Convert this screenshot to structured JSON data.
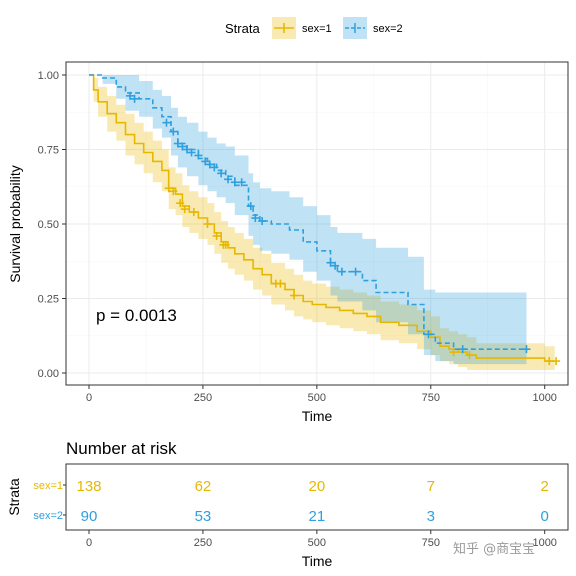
{
  "chart_data": [
    {
      "type": "line",
      "subtype": "kaplan-meier survival curve with confidence bands",
      "xlabel": "Time",
      "ylabel": "Survival probability",
      "xlim": [
        0,
        1020
      ],
      "ylim": [
        0,
        1
      ],
      "x_ticks": [
        0,
        250,
        500,
        750,
        1000
      ],
      "y_ticks": [
        "0.00",
        "0.25",
        "0.50",
        "0.75",
        "1.00"
      ],
      "grid": true,
      "legend": {
        "title": "Strata",
        "position": "top"
      },
      "annotation": "p = 0.0013",
      "series": [
        {
          "name": "sex=1",
          "color": "#E7B800",
          "line_style": "solid",
          "steps": [
            [
              0,
              1.0
            ],
            [
              10,
              0.95
            ],
            [
              20,
              0.91
            ],
            [
              40,
              0.87
            ],
            [
              60,
              0.84
            ],
            [
              80,
              0.8
            ],
            [
              100,
              0.77
            ],
            [
              120,
              0.74
            ],
            [
              140,
              0.71
            ],
            [
              160,
              0.68
            ],
            [
              175,
              0.62
            ],
            [
              190,
              0.6
            ],
            [
              205,
              0.56
            ],
            [
              220,
              0.54
            ],
            [
              240,
              0.52
            ],
            [
              260,
              0.5
            ],
            [
              275,
              0.47
            ],
            [
              290,
              0.44
            ],
            [
              305,
              0.42
            ],
            [
              320,
              0.4
            ],
            [
              340,
              0.38
            ],
            [
              360,
              0.35
            ],
            [
              380,
              0.33
            ],
            [
              400,
              0.3
            ],
            [
              430,
              0.28
            ],
            [
              450,
              0.26
            ],
            [
              470,
              0.24
            ],
            [
              490,
              0.23
            ],
            [
              520,
              0.22
            ],
            [
              550,
              0.21
            ],
            [
              580,
              0.2
            ],
            [
              610,
              0.19
            ],
            [
              640,
              0.17
            ],
            [
              680,
              0.16
            ],
            [
              720,
              0.14
            ],
            [
              750,
              0.12
            ],
            [
              770,
              0.09
            ],
            [
              790,
              0.08
            ],
            [
              810,
              0.07
            ],
            [
              830,
              0.06
            ],
            [
              850,
              0.05
            ],
            [
              900,
              0.05
            ],
            [
              1000,
              0.04
            ],
            [
              1022,
              0.04
            ]
          ],
          "ci_upper": [
            [
              0,
              1.0
            ],
            [
              10,
              0.99
            ],
            [
              20,
              0.96
            ],
            [
              40,
              0.93
            ],
            [
              60,
              0.9
            ],
            [
              80,
              0.87
            ],
            [
              100,
              0.84
            ],
            [
              120,
              0.81
            ],
            [
              140,
              0.78
            ],
            [
              160,
              0.75
            ],
            [
              175,
              0.69
            ],
            [
              190,
              0.67
            ],
            [
              205,
              0.63
            ],
            [
              220,
              0.61
            ],
            [
              240,
              0.59
            ],
            [
              260,
              0.57
            ],
            [
              275,
              0.54
            ],
            [
              290,
              0.51
            ],
            [
              305,
              0.49
            ],
            [
              320,
              0.47
            ],
            [
              340,
              0.45
            ],
            [
              360,
              0.42
            ],
            [
              380,
              0.4
            ],
            [
              400,
              0.37
            ],
            [
              430,
              0.35
            ],
            [
              450,
              0.33
            ],
            [
              470,
              0.31
            ],
            [
              490,
              0.3
            ],
            [
              520,
              0.29
            ],
            [
              550,
              0.28
            ],
            [
              580,
              0.27
            ],
            [
              610,
              0.26
            ],
            [
              640,
              0.24
            ],
            [
              680,
              0.23
            ],
            [
              720,
              0.21
            ],
            [
              750,
              0.19
            ],
            [
              770,
              0.15
            ],
            [
              790,
              0.14
            ],
            [
              810,
              0.13
            ],
            [
              830,
              0.12
            ],
            [
              850,
              0.1
            ],
            [
              900,
              0.1
            ],
            [
              1000,
              0.09
            ],
            [
              1022,
              0.09
            ]
          ],
          "ci_lower": [
            [
              0,
              1.0
            ],
            [
              10,
              0.91
            ],
            [
              20,
              0.86
            ],
            [
              40,
              0.81
            ],
            [
              60,
              0.78
            ],
            [
              80,
              0.73
            ],
            [
              100,
              0.7
            ],
            [
              120,
              0.67
            ],
            [
              140,
              0.64
            ],
            [
              160,
              0.61
            ],
            [
              175,
              0.55
            ],
            [
              190,
              0.53
            ],
            [
              205,
              0.49
            ],
            [
              220,
              0.47
            ],
            [
              240,
              0.45
            ],
            [
              260,
              0.43
            ],
            [
              275,
              0.4
            ],
            [
              290,
              0.37
            ],
            [
              305,
              0.35
            ],
            [
              320,
              0.33
            ],
            [
              340,
              0.31
            ],
            [
              360,
              0.28
            ],
            [
              380,
              0.26
            ],
            [
              400,
              0.23
            ],
            [
              430,
              0.21
            ],
            [
              450,
              0.19
            ],
            [
              470,
              0.18
            ],
            [
              490,
              0.17
            ],
            [
              520,
              0.16
            ],
            [
              550,
              0.15
            ],
            [
              580,
              0.14
            ],
            [
              610,
              0.13
            ],
            [
              640,
              0.11
            ],
            [
              680,
              0.1
            ],
            [
              720,
              0.08
            ],
            [
              750,
              0.06
            ],
            [
              770,
              0.04
            ],
            [
              790,
              0.03
            ],
            [
              810,
              0.02
            ],
            [
              830,
              0.01
            ],
            [
              850,
              0.01
            ],
            [
              900,
              0.01
            ],
            [
              1000,
              0.01
            ],
            [
              1022,
              0.01
            ]
          ],
          "censored": [
            [
              175,
              0.62
            ],
            [
              185,
              0.61
            ],
            [
              200,
              0.57
            ],
            [
              210,
              0.55
            ],
            [
              230,
              0.54
            ],
            [
              260,
              0.5
            ],
            [
              280,
              0.46
            ],
            [
              295,
              0.43
            ],
            [
              300,
              0.43
            ],
            [
              410,
              0.3
            ],
            [
              420,
              0.3
            ],
            [
              450,
              0.26
            ],
            [
              800,
              0.07
            ],
            [
              835,
              0.06
            ],
            [
              1010,
              0.04
            ],
            [
              1025,
              0.04
            ]
          ]
        },
        {
          "name": "sex=2",
          "color": "#2E9FDF",
          "line_style": "dashed",
          "steps": [
            [
              0,
              1.0
            ],
            [
              30,
              0.99
            ],
            [
              60,
              0.96
            ],
            [
              80,
              0.94
            ],
            [
              110,
              0.92
            ],
            [
              140,
              0.89
            ],
            [
              160,
              0.86
            ],
            [
              180,
              0.81
            ],
            [
              195,
              0.77
            ],
            [
              215,
              0.75
            ],
            [
              240,
              0.72
            ],
            [
              260,
              0.7
            ],
            [
              280,
              0.68
            ],
            [
              300,
              0.66
            ],
            [
              320,
              0.63
            ],
            [
              350,
              0.56
            ],
            [
              360,
              0.53
            ],
            [
              375,
              0.51
            ],
            [
              400,
              0.5
            ],
            [
              440,
              0.48
            ],
            [
              470,
              0.44
            ],
            [
              500,
              0.41
            ],
            [
              530,
              0.36
            ],
            [
              545,
              0.34
            ],
            [
              580,
              0.34
            ],
            [
              600,
              0.31
            ],
            [
              630,
              0.27
            ],
            [
              700,
              0.23
            ],
            [
              735,
              0.13
            ],
            [
              760,
              0.1
            ],
            [
              800,
              0.08
            ],
            [
              960,
              0.08
            ]
          ],
          "ci_upper": [
            [
              0,
              1.0
            ],
            [
              30,
              1.0
            ],
            [
              60,
              1.0
            ],
            [
              80,
              1.0
            ],
            [
              110,
              0.98
            ],
            [
              140,
              0.95
            ],
            [
              160,
              0.93
            ],
            [
              180,
              0.89
            ],
            [
              195,
              0.86
            ],
            [
              215,
              0.84
            ],
            [
              240,
              0.81
            ],
            [
              260,
              0.79
            ],
            [
              280,
              0.77
            ],
            [
              300,
              0.76
            ],
            [
              320,
              0.73
            ],
            [
              350,
              0.67
            ],
            [
              360,
              0.64
            ],
            [
              375,
              0.62
            ],
            [
              400,
              0.61
            ],
            [
              440,
              0.59
            ],
            [
              470,
              0.56
            ],
            [
              500,
              0.53
            ],
            [
              530,
              0.49
            ],
            [
              545,
              0.47
            ],
            [
              580,
              0.47
            ],
            [
              600,
              0.45
            ],
            [
              630,
              0.42
            ],
            [
              700,
              0.39
            ],
            [
              735,
              0.28
            ],
            [
              760,
              0.27
            ],
            [
              800,
              0.27
            ],
            [
              960,
              0.27
            ]
          ],
          "ci_lower": [
            [
              0,
              1.0
            ],
            [
              30,
              0.97
            ],
            [
              60,
              0.92
            ],
            [
              80,
              0.88
            ],
            [
              110,
              0.86
            ],
            [
              140,
              0.82
            ],
            [
              160,
              0.79
            ],
            [
              180,
              0.73
            ],
            [
              195,
              0.69
            ],
            [
              215,
              0.66
            ],
            [
              240,
              0.63
            ],
            [
              260,
              0.61
            ],
            [
              280,
              0.59
            ],
            [
              300,
              0.57
            ],
            [
              320,
              0.53
            ],
            [
              350,
              0.46
            ],
            [
              360,
              0.43
            ],
            [
              375,
              0.41
            ],
            [
              400,
              0.4
            ],
            [
              440,
              0.38
            ],
            [
              470,
              0.34
            ],
            [
              500,
              0.31
            ],
            [
              530,
              0.26
            ],
            [
              545,
              0.24
            ],
            [
              580,
              0.24
            ],
            [
              600,
              0.21
            ],
            [
              630,
              0.17
            ],
            [
              700,
              0.13
            ],
            [
              735,
              0.06
            ],
            [
              760,
              0.04
            ],
            [
              800,
              0.03
            ],
            [
              960,
              0.03
            ]
          ],
          "censored": [
            [
              90,
              0.93
            ],
            [
              100,
              0.92
            ],
            [
              170,
              0.84
            ],
            [
              185,
              0.81
            ],
            [
              195,
              0.77
            ],
            [
              205,
              0.76
            ],
            [
              215,
              0.75
            ],
            [
              225,
              0.74
            ],
            [
              240,
              0.73
            ],
            [
              255,
              0.71
            ],
            [
              265,
              0.7
            ],
            [
              275,
              0.69
            ],
            [
              290,
              0.67
            ],
            [
              305,
              0.65
            ],
            [
              320,
              0.64
            ],
            [
              335,
              0.64
            ],
            [
              355,
              0.56
            ],
            [
              365,
              0.52
            ],
            [
              380,
              0.51
            ],
            [
              530,
              0.37
            ],
            [
              540,
              0.36
            ],
            [
              555,
              0.34
            ],
            [
              585,
              0.34
            ],
            [
              745,
              0.13
            ],
            [
              820,
              0.08
            ],
            [
              960,
              0.08
            ]
          ]
        }
      ]
    },
    {
      "type": "table",
      "title": "Number at risk",
      "xlabel": "Time",
      "ylabel": "Strata",
      "x_ticks": [
        0,
        250,
        500,
        750,
        1000
      ],
      "x_tick_labels": [
        "0",
        "250",
        "500",
        "750",
        "1000"
      ],
      "rows": [
        {
          "label": "sex=1",
          "color": "#E7B800",
          "values": [
            138,
            62,
            20,
            7,
            2
          ]
        },
        {
          "label": "sex=2",
          "color": "#2E9FDF",
          "values": [
            90,
            53,
            21,
            3,
            0
          ]
        }
      ]
    }
  ],
  "watermark": "知乎 @商宝宝"
}
